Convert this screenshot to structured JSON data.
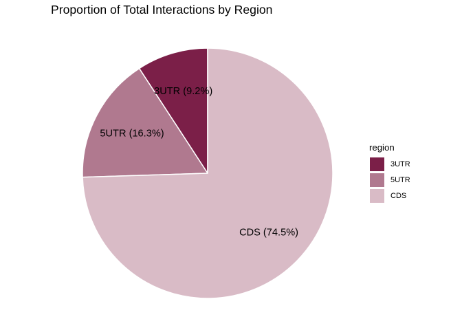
{
  "chart_data": {
    "type": "pie",
    "title": "Proportion of Total Interactions by Region",
    "legend_title": "region",
    "legend_position": "right",
    "slices": [
      {
        "name": "3UTR",
        "value": 9.2,
        "label": "3UTR (9.2%)",
        "color": "#7b1f48"
      },
      {
        "name": "5UTR",
        "value": 16.3,
        "label": "5UTR (16.3%)",
        "color": "#b0798f"
      },
      {
        "name": "CDS",
        "value": 74.5,
        "label": "CDS (74.5%)",
        "color": "#d9bbc6"
      }
    ],
    "slice_border_color": "#ffffff"
  }
}
